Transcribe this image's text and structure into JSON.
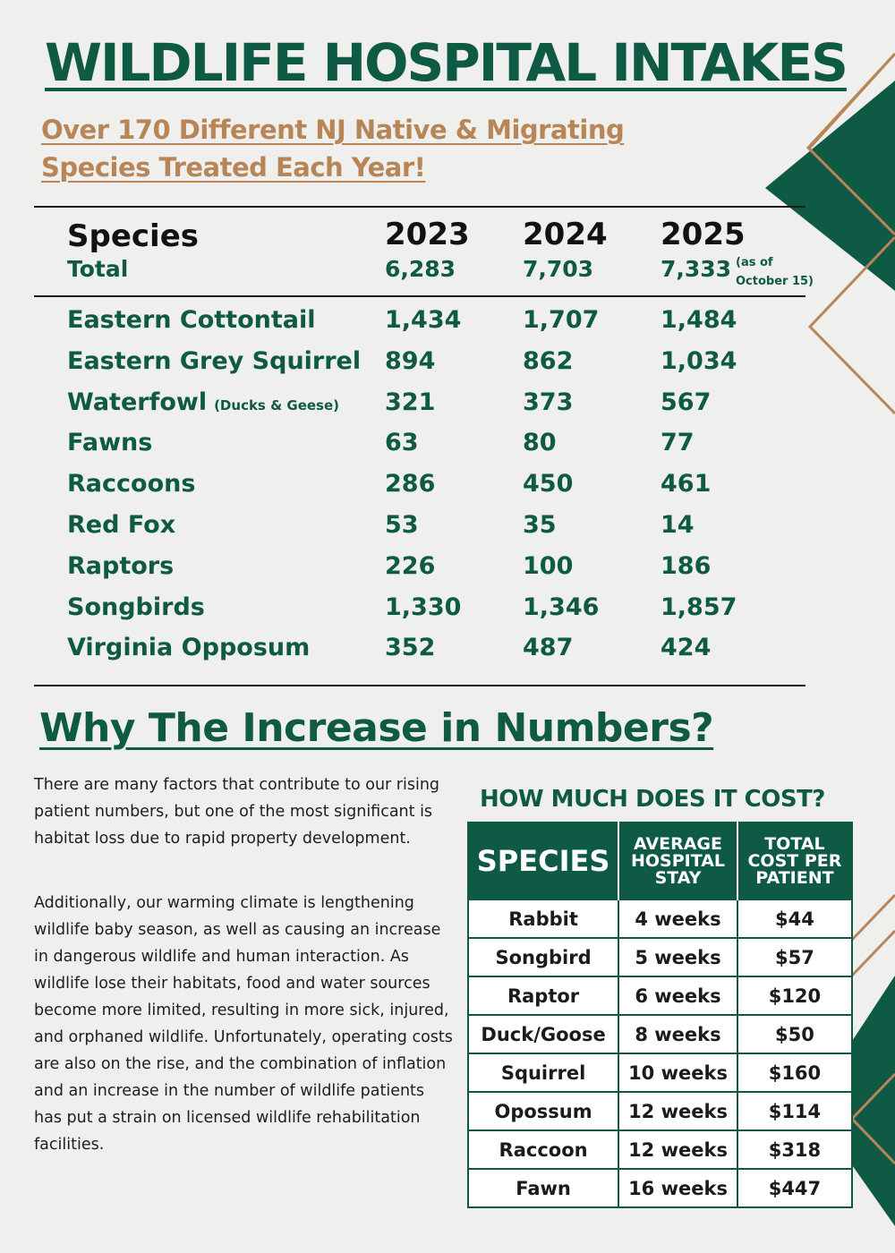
{
  "title": "WILDLIFE HOSPITAL INTAKES",
  "subtitle_line1": "Over 170 Different NJ Native & Migrating",
  "subtitle_line2": "Species Treated Each Year!",
  "intake_table": {
    "col_species": "Species",
    "row_total_label": "Total",
    "years": [
      "2023",
      "2024",
      "2025"
    ],
    "totals": [
      "6,283",
      "7,703",
      "7,333"
    ],
    "note_line1": "(as of",
    "note_line2": "October 15)",
    "rows": [
      {
        "name": "Eastern Cottontail",
        "qualifier": "",
        "values": [
          "1,434",
          "1,707",
          "1,484"
        ]
      },
      {
        "name": "Eastern Grey Squirrel",
        "qualifier": "",
        "values": [
          "894",
          "862",
          "1,034"
        ]
      },
      {
        "name": "Waterfowl",
        "qualifier": "(Ducks & Geese)",
        "values": [
          "321",
          "373",
          "567"
        ]
      },
      {
        "name": "Fawns",
        "qualifier": "",
        "values": [
          "63",
          "80",
          "77"
        ]
      },
      {
        "name": "Raccoons",
        "qualifier": "",
        "values": [
          "286",
          "450",
          "461"
        ]
      },
      {
        "name": "Red Fox",
        "qualifier": "",
        "values": [
          "53",
          "35",
          "14"
        ]
      },
      {
        "name": "Raptors",
        "qualifier": "",
        "values": [
          "226",
          "100",
          "186"
        ]
      },
      {
        "name": "Songbirds",
        "qualifier": "",
        "values": [
          "1,330",
          "1,346",
          "1,857"
        ]
      },
      {
        "name": "Virginia Opposum",
        "qualifier": "",
        "values": [
          "352",
          "487",
          "424"
        ]
      }
    ]
  },
  "why_heading": "Why The Increase in Numbers?",
  "paragraph1": "There are many factors that contribute to our rising patient numbers, but one of the most significant is habitat loss due to rapid property development.",
  "paragraph2": "Additionally, our warming climate is lengthening wildlife baby season, as well as causing an increase in dangerous wildlife and human interaction. As wildlife lose their habitats, food and water sources become more limited, resulting in more sick, injured, and orphaned wildlife. Unfortunately, operating costs are also on the rise, and the combination of inflation and an increase in the number of wildlife patients has put a strain on licensed wildlife rehabilitation facilities.",
  "cost_table": {
    "title": "HOW MUCH DOES IT COST?",
    "headers": [
      "SPECIES",
      "AVERAGE HOSPITAL STAY",
      "TOTAL COST PER PATIENT"
    ],
    "rows": [
      [
        "Rabbit",
        "4 weeks",
        "$44"
      ],
      [
        "Songbird",
        "5 weeks",
        "$57"
      ],
      [
        "Raptor",
        "6 weeks",
        "$120"
      ],
      [
        "Duck/Goose",
        "8 weeks",
        "$50"
      ],
      [
        "Squirrel",
        "10 weeks",
        "$160"
      ],
      [
        "Opossum",
        "12 weeks",
        "$114"
      ],
      [
        "Raccoon",
        "12 weeks",
        "$318"
      ],
      [
        "Fawn",
        "16 weeks",
        "$447"
      ]
    ]
  },
  "colors": {
    "green": "#0e5a44",
    "tan": "#b88656",
    "background": "#efefed"
  }
}
